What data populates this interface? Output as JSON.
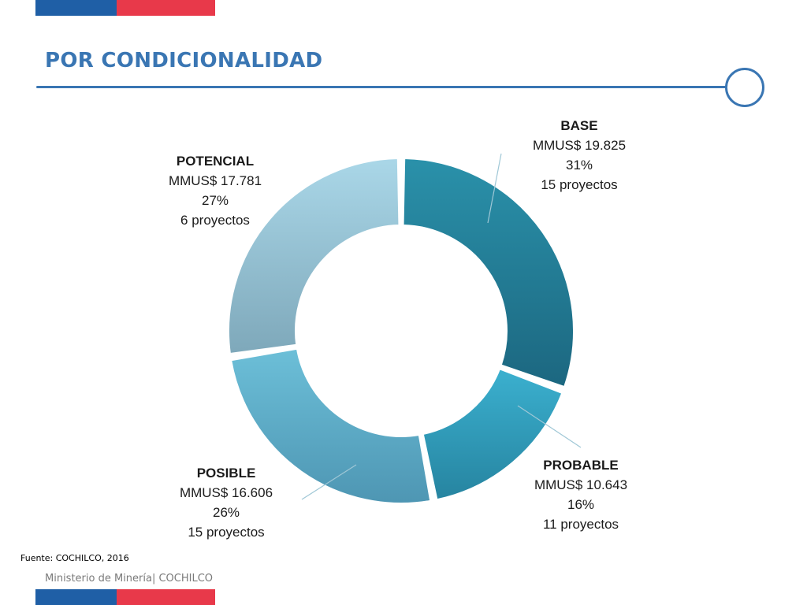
{
  "slide": {
    "title": "POR CONDICIONALIDAD",
    "source": "Fuente: COCHILCO, 2016",
    "footer": "Ministerio de Minería| COCHILCO"
  },
  "colors": {
    "brand_blue": "#1f5fa6",
    "brand_red": "#e8394a",
    "title_blue": "#3a76b3"
  },
  "chart_data": {
    "type": "pie",
    "donut": true,
    "legend": "none",
    "slices": [
      {
        "name": "BASE",
        "value": 19825,
        "amount_label": "MMUS$ 19.825",
        "percent_label": "31%",
        "projects_label": "15 proyectos",
        "color_top": "#2a91aa",
        "color_bottom": "#1c6780"
      },
      {
        "name": "PROBABLE",
        "value": 10643,
        "amount_label": "MMUS$ 10.643",
        "percent_label": "16%",
        "projects_label": "11 proyectos",
        "color_top": "#3bb0cf",
        "color_bottom": "#2684a0"
      },
      {
        "name": "POSIBLE",
        "value": 16606,
        "amount_label": "MMUS$ 16.606",
        "percent_label": "26%",
        "projects_label": "15 proyectos",
        "color_top": "#6cbfd8",
        "color_bottom": "#4e96b3"
      },
      {
        "name": "POTENCIAL",
        "value": 17781,
        "amount_label": "MMUS$ 17.781",
        "percent_label": "27%",
        "projects_label": "6 proyectos",
        "color_top": "#aad7e8",
        "color_bottom": "#7ea8ba"
      }
    ]
  }
}
